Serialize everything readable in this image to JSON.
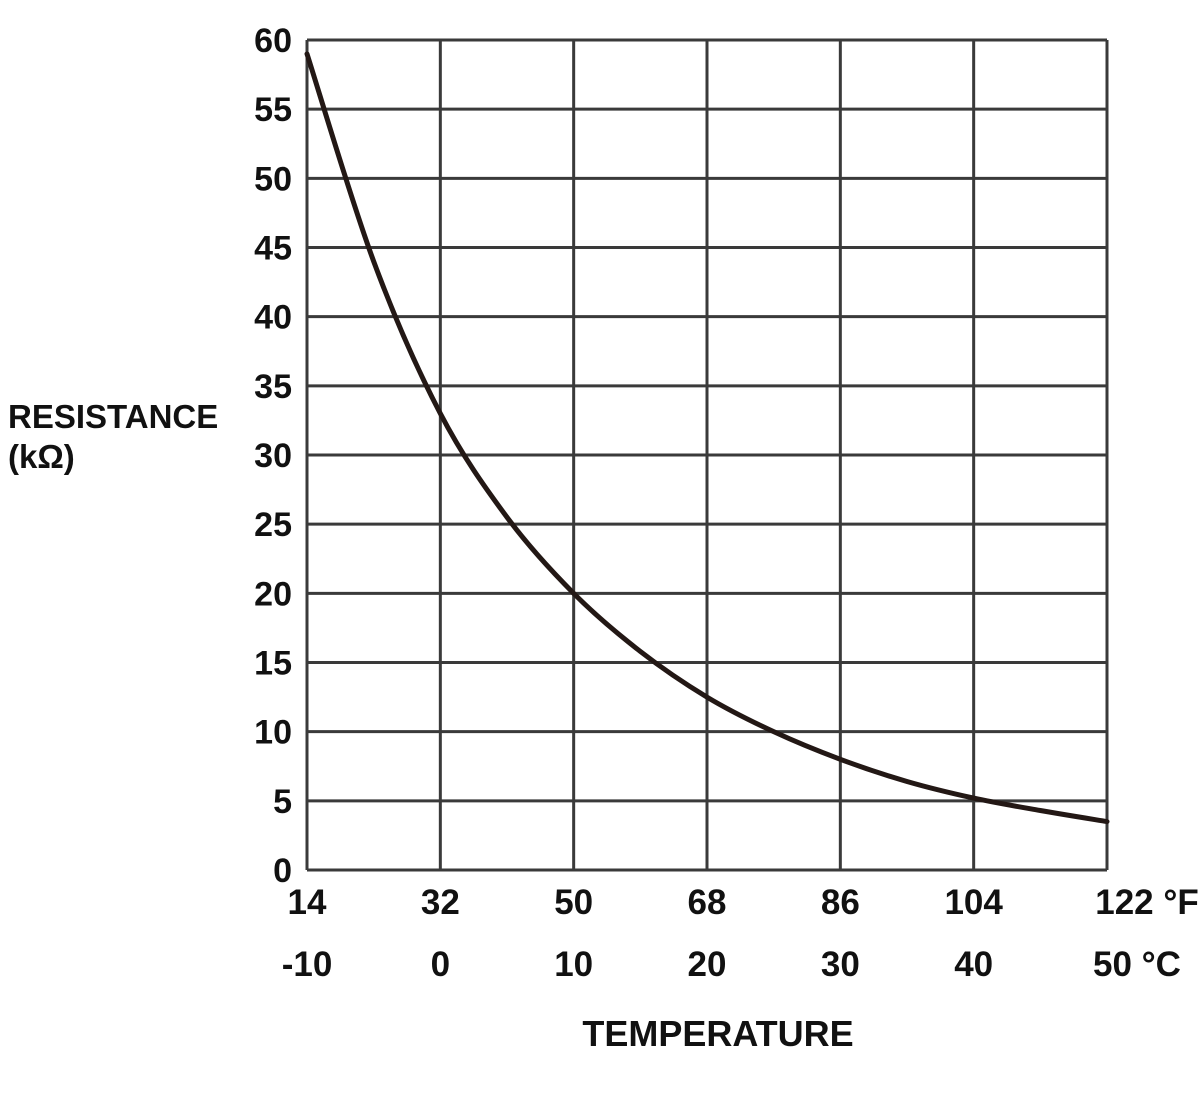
{
  "chart_data": {
    "type": "line",
    "title": "",
    "ylabel_line1": "RESISTANCE",
    "ylabel_line2": "(kΩ)",
    "xlabel": "TEMPERATURE",
    "x_unit_celsius": "°C",
    "x_unit_fahrenheit": "°F",
    "grid": true,
    "legend": "none",
    "xlim": [
      -10,
      50
    ],
    "ylim": [
      0,
      60
    ],
    "x_ticks_celsius": [
      -10,
      0,
      10,
      20,
      30,
      40,
      50
    ],
    "x_ticks_fahrenheit": [
      14,
      32,
      50,
      68,
      86,
      104,
      122
    ],
    "y_ticks": [
      0,
      5,
      10,
      15,
      20,
      25,
      30,
      35,
      40,
      45,
      50,
      55,
      60
    ],
    "series": [
      {
        "name": "Resistance",
        "color": "#231815",
        "x": [
          -10,
          -5,
          0,
          5,
          10,
          15,
          20,
          25,
          30,
          35,
          40,
          45,
          50
        ],
        "y": [
          59,
          44,
          33,
          25.5,
          20,
          15.8,
          12.5,
          10,
          8,
          6.4,
          5.2,
          4.3,
          3.5
        ]
      }
    ]
  }
}
